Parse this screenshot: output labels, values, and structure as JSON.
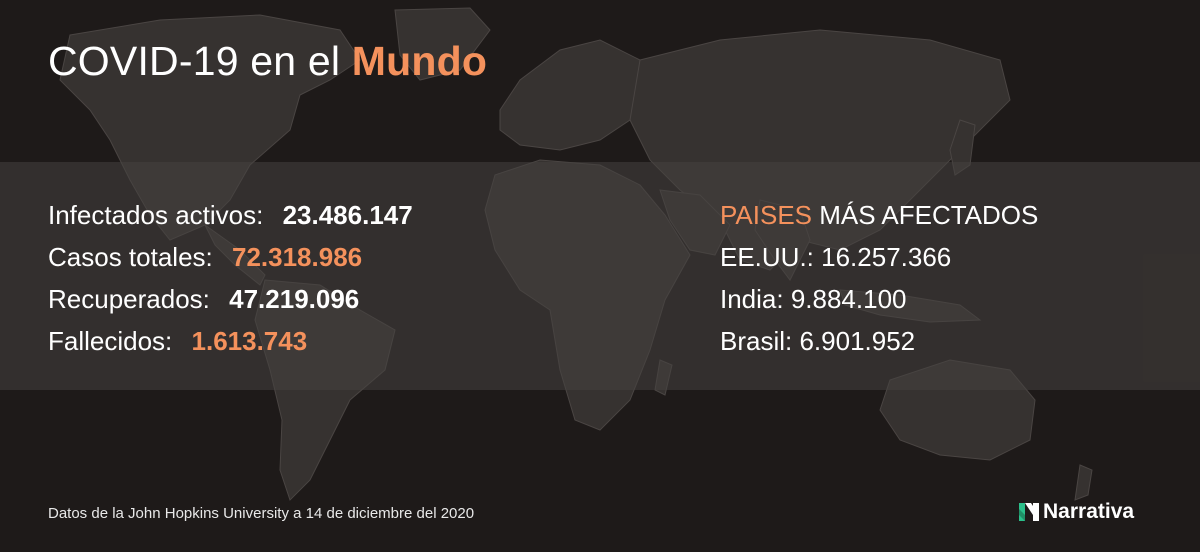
{
  "title": {
    "prefix": "COVID-19 en el",
    "highlight": "Mundo"
  },
  "stats": [
    {
      "label": "Infectados activos:",
      "value": "23.486.147",
      "color": "#ffffff"
    },
    {
      "label": "Casos totales:",
      "value": "72.318.986",
      "color": "#f4915c"
    },
    {
      "label": "Recuperados:",
      "value": "47.219.096",
      "color": "#ffffff"
    },
    {
      "label": "Fallecidos:",
      "value": "1.613.743",
      "color": "#f4915c"
    }
  ],
  "countries": {
    "heading_highlight": "PAISES",
    "heading_rest": "MÁS AFECTADOS",
    "items": [
      "EE.UU.: 16.257.366",
      "India: 9.884.100",
      "Brasil: 6.901.952"
    ]
  },
  "footer": "Datos de la John Hopkins University a 14 de diciembre del 2020",
  "logo": {
    "text": "Narrativa",
    "icon": "narrativa-n-icon"
  },
  "colors": {
    "background": "#1e1a19",
    "land": "#3a3634",
    "accent": "#f4915c",
    "logo_green": "#2bbf8a"
  }
}
